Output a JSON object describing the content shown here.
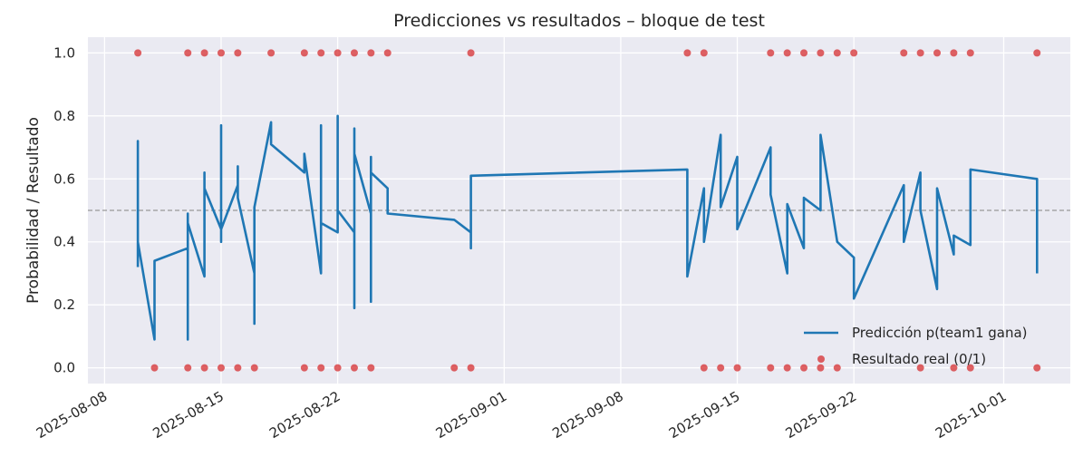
{
  "chart_data": {
    "type": "line",
    "title": "Predicciones vs resultados – bloque de test",
    "xlabel": "",
    "ylabel": "Probabilidad / Resultado",
    "xlim": [
      "2025-08-07",
      "2025-10-05"
    ],
    "ylim": [
      -0.05,
      1.05
    ],
    "x_ticks": [
      "2025-08-08",
      "2025-08-15",
      "2025-08-22",
      "2025-09-01",
      "2025-09-08",
      "2025-09-15",
      "2025-09-22",
      "2025-10-01"
    ],
    "y_ticks": [
      0.0,
      0.2,
      0.4,
      0.6,
      0.8,
      1.0
    ],
    "y_tick_labels": [
      "0.0",
      "0.2",
      "0.4",
      "0.6",
      "0.8",
      "1.0"
    ],
    "grid": true,
    "reference_line": 0.5,
    "legend_position": "lower right",
    "colors": {
      "background": "#eaeaf2",
      "grid": "#ffffff",
      "prediction": "#1f77b4",
      "result": "#d62728",
      "reference": "#999999"
    },
    "series": [
      {
        "name": "Predicción p(team1 gana)",
        "type": "line",
        "x": [
          "2025-08-10",
          "2025-08-10",
          "2025-08-10",
          "2025-08-10",
          "2025-08-10",
          "2025-08-10",
          "2025-08-11",
          "2025-08-11",
          "2025-08-13",
          "2025-08-13",
          "2025-08-13",
          "2025-08-13",
          "2025-08-14",
          "2025-08-14",
          "2025-08-14",
          "2025-08-15",
          "2025-08-15",
          "2025-08-15",
          "2025-08-15",
          "2025-08-16",
          "2025-08-16",
          "2025-08-16",
          "2025-08-17",
          "2025-08-17",
          "2025-08-17",
          "2025-08-18",
          "2025-08-18",
          "2025-08-20",
          "2025-08-20",
          "2025-08-21",
          "2025-08-21",
          "2025-08-21",
          "2025-08-22",
          "2025-08-22",
          "2025-08-22",
          "2025-08-22",
          "2025-08-23",
          "2025-08-23",
          "2025-08-23",
          "2025-08-23",
          "2025-08-24",
          "2025-08-24",
          "2025-08-24",
          "2025-08-24",
          "2025-08-25",
          "2025-08-25",
          "2025-08-25",
          "2025-08-29",
          "2025-08-30",
          "2025-08-30",
          "2025-08-30",
          "2025-08-30",
          "2025-09-12",
          "2025-09-12",
          "2025-09-13",
          "2025-09-13",
          "2025-09-14",
          "2025-09-14",
          "2025-09-15",
          "2025-09-15",
          "2025-09-17",
          "2025-09-17",
          "2025-09-18",
          "2025-09-18",
          "2025-09-19",
          "2025-09-19",
          "2025-09-20",
          "2025-09-20",
          "2025-09-21",
          "2025-09-21",
          "2025-09-22",
          "2025-09-22",
          "2025-09-25",
          "2025-09-25",
          "2025-09-26",
          "2025-09-26",
          "2025-09-27",
          "2025-09-27",
          "2025-09-28",
          "2025-09-28",
          "2025-09-29",
          "2025-09-29",
          "2025-10-03",
          "2025-10-03"
        ],
        "y": [
          0.32,
          0.72,
          0.35,
          0.56,
          0.33,
          0.4,
          0.09,
          0.34,
          0.38,
          0.49,
          0.09,
          0.46,
          0.29,
          0.62,
          0.57,
          0.44,
          0.77,
          0.4,
          0.44,
          0.58,
          0.64,
          0.54,
          0.3,
          0.14,
          0.51,
          0.78,
          0.71,
          0.62,
          0.68,
          0.3,
          0.77,
          0.46,
          0.43,
          0.8,
          0.5,
          0.5,
          0.43,
          0.19,
          0.76,
          0.68,
          0.49,
          0.21,
          0.67,
          0.62,
          0.57,
          0.5,
          0.49,
          0.47,
          0.43,
          0.38,
          0.4,
          0.61,
          0.63,
          0.29,
          0.57,
          0.4,
          0.74,
          0.51,
          0.67,
          0.44,
          0.7,
          0.55,
          0.3,
          0.52,
          0.38,
          0.54,
          0.5,
          0.74,
          0.4,
          0.4,
          0.35,
          0.22,
          0.58,
          0.4,
          0.62,
          0.5,
          0.25,
          0.57,
          0.36,
          0.42,
          0.39,
          0.63,
          0.6,
          0.3
        ]
      },
      {
        "name": "Resultado real (0/1)",
        "type": "scatter",
        "x": [
          "2025-08-10",
          "2025-08-11",
          "2025-08-13",
          "2025-08-13",
          "2025-08-14",
          "2025-08-14",
          "2025-08-15",
          "2025-08-15",
          "2025-08-16",
          "2025-08-16",
          "2025-08-17",
          "2025-08-18",
          "2025-08-20",
          "2025-08-20",
          "2025-08-21",
          "2025-08-21",
          "2025-08-22",
          "2025-08-22",
          "2025-08-23",
          "2025-08-23",
          "2025-08-24",
          "2025-08-24",
          "2025-08-25",
          "2025-08-29",
          "2025-08-30",
          "2025-08-30",
          "2025-09-12",
          "2025-09-13",
          "2025-09-13",
          "2025-09-14",
          "2025-09-15",
          "2025-09-17",
          "2025-09-17",
          "2025-09-18",
          "2025-09-18",
          "2025-09-19",
          "2025-09-19",
          "2025-09-20",
          "2025-09-20",
          "2025-09-21",
          "2025-09-21",
          "2025-09-22",
          "2025-09-25",
          "2025-09-26",
          "2025-09-26",
          "2025-09-27",
          "2025-09-28",
          "2025-09-28",
          "2025-09-29",
          "2025-09-29",
          "2025-10-03",
          "2025-10-03"
        ],
        "y": [
          1,
          0,
          1,
          0,
          1,
          0,
          1,
          0,
          1,
          0,
          0,
          1,
          1,
          0,
          1,
          0,
          1,
          0,
          1,
          0,
          1,
          0,
          1,
          0,
          1,
          0,
          1,
          1,
          0,
          0,
          0,
          1,
          0,
          1,
          0,
          1,
          0,
          1,
          0,
          1,
          0,
          1,
          1,
          1,
          0,
          1,
          1,
          0,
          1,
          0,
          1,
          0
        ]
      }
    ]
  }
}
